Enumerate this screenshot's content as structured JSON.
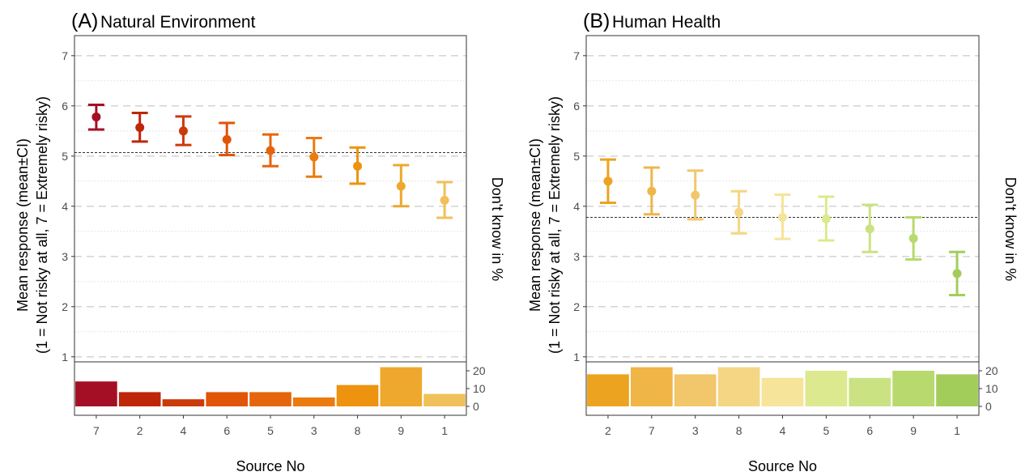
{
  "chart_data": [
    {
      "type": "errorbar",
      "panel_tag": "(A)",
      "title": "Natural Environment",
      "xlabel": "Source No",
      "ylabel_line1": "Mean response (mean±CI)",
      "ylabel_line2": "(1 = Not risky at all, 7 = Extremely risky)",
      "right_label": "Don't know in %",
      "ylim": [
        0.9,
        7.4
      ],
      "yticks": [
        1,
        2,
        3,
        4,
        5,
        6,
        7
      ],
      "reference_line": 5.07,
      "bar_ylim": [
        -5,
        25
      ],
      "bar_ticks": [
        0,
        10,
        20
      ],
      "categories": [
        "7",
        "2",
        "4",
        "6",
        "5",
        "3",
        "8",
        "9",
        "1"
      ],
      "mean": [
        5.78,
        5.57,
        5.5,
        5.33,
        5.11,
        4.98,
        4.8,
        4.4,
        4.12
      ],
      "ci_low": [
        5.53,
        5.29,
        5.22,
        5.02,
        4.8,
        4.59,
        4.45,
        4.0,
        3.77
      ],
      "ci_high": [
        6.02,
        5.86,
        5.79,
        5.66,
        5.43,
        5.36,
        5.17,
        4.82,
        4.48
      ],
      "dont_know_pct": [
        14,
        8,
        4,
        8,
        8,
        5,
        12,
        22,
        7
      ],
      "colors": [
        "#a50f26",
        "#bf2608",
        "#cc3a0a",
        "#e05508",
        "#e5650c",
        "#eb7b10",
        "#ed930f",
        "#eda82d",
        "#f0c05a"
      ],
      "grid": true
    },
    {
      "type": "errorbar",
      "panel_tag": "(B)",
      "title": "Human Health",
      "xlabel": "Source No",
      "ylabel_line1": "Mean response (mean±CI)",
      "ylabel_line2": "(1 = Not risky at all, 7 = Extremely risky)",
      "right_label": "Don't know in %",
      "ylim": [
        0.9,
        7.4
      ],
      "yticks": [
        1,
        2,
        3,
        4,
        5,
        6,
        7
      ],
      "reference_line": 3.78,
      "bar_ylim": [
        -5,
        25
      ],
      "bar_ticks": [
        0,
        10,
        20
      ],
      "categories": [
        "2",
        "7",
        "3",
        "8",
        "4",
        "5",
        "6",
        "9",
        "1"
      ],
      "mean": [
        4.5,
        4.3,
        4.22,
        3.88,
        3.78,
        3.75,
        3.55,
        3.36,
        2.66
      ],
      "ci_low": [
        4.07,
        3.84,
        3.74,
        3.46,
        3.35,
        3.32,
        3.09,
        2.94,
        2.23
      ],
      "ci_high": [
        4.93,
        4.77,
        4.71,
        4.3,
        4.23,
        4.19,
        4.03,
        3.78,
        3.09
      ],
      "dont_know_pct": [
        18,
        22,
        18,
        22,
        16,
        20,
        16,
        20,
        18
      ],
      "colors": [
        "#eca31f",
        "#f0b547",
        "#f2c66b",
        "#f4d684",
        "#f6e49a",
        "#dce98e",
        "#cbe283",
        "#b8d96e",
        "#a3cd5a"
      ],
      "grid": true
    }
  ]
}
